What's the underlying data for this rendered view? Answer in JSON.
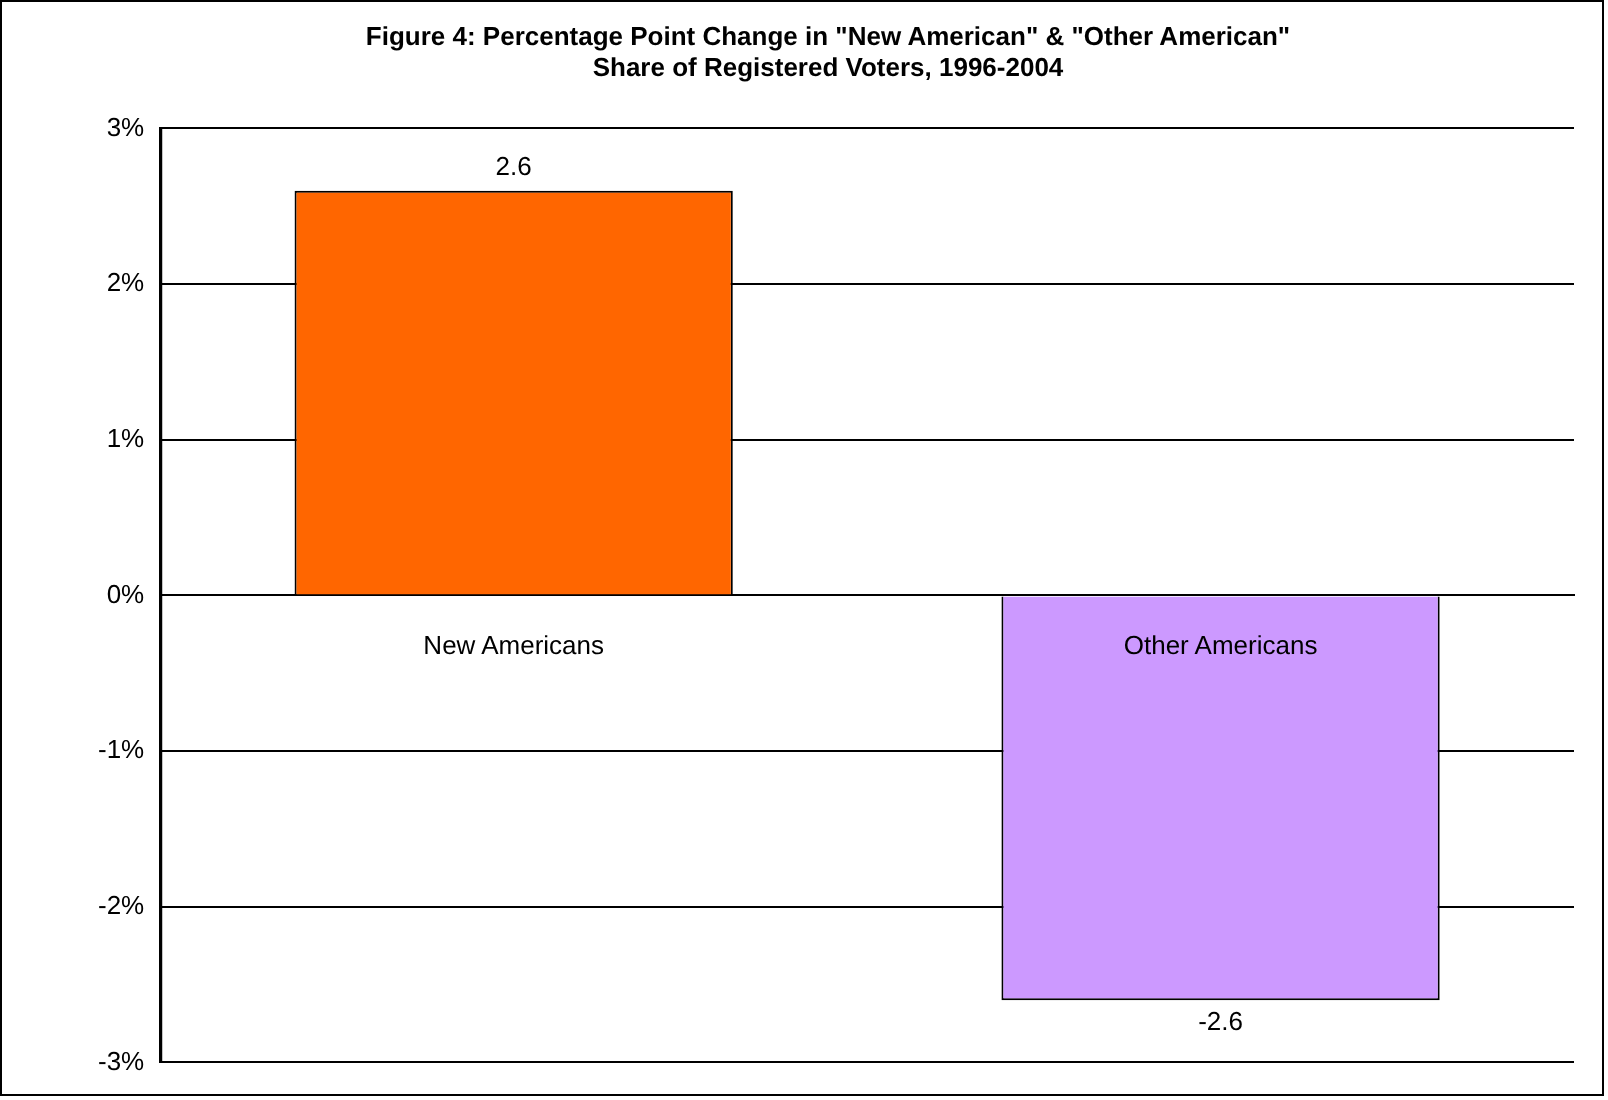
{
  "chart_data": {
    "type": "bar",
    "title": "Figure 4: Percentage Point Change in \"New American\" & \"Other American\"\nShare of Registered Voters, 1996-2004",
    "categories": [
      "New Americans",
      "Other Americans"
    ],
    "values": [
      2.6,
      -2.6
    ],
    "colors": [
      "#ff6600",
      "#cc99ff"
    ],
    "ylim": [
      -3,
      3
    ],
    "yticks": [
      {
        "value": -3,
        "label": "-3%"
      },
      {
        "value": -2,
        "label": "-2%"
      },
      {
        "value": -1,
        "label": "-1%"
      },
      {
        "value": 0,
        "label": "0%"
      },
      {
        "value": 1,
        "label": "1%"
      },
      {
        "value": 2,
        "label": "2%"
      },
      {
        "value": 3,
        "label": "3%"
      }
    ],
    "grid": "y",
    "data_labels": true
  }
}
